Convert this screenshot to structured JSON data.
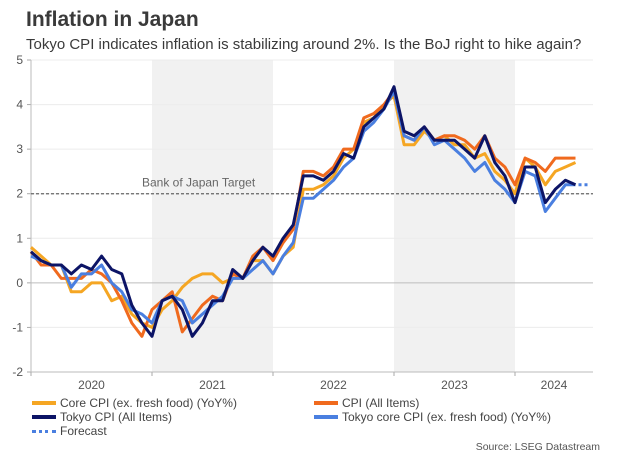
{
  "header": {
    "title": "Inflation in Japan",
    "subtitle": "Tokyo CPI indicates inflation is stabilizing around 2%. Is the BoJ right to hike again?"
  },
  "source": "Source: LSEG Datastream",
  "chart_data": {
    "type": "line",
    "title": "Inflation in Japan",
    "subtitle": "Tokyo CPI indicates inflation is stabilizing around 2%. Is the BoJ right to hike again?",
    "xlabel": "",
    "ylabel": "",
    "ylim": [
      -2,
      5
    ],
    "yticks": [
      "5",
      "4",
      "3",
      "2",
      "1",
      "0",
      "-1",
      "-2"
    ],
    "ytick_values": [
      5,
      4,
      3,
      2,
      1,
      0,
      -1,
      -2
    ],
    "x_start": "2020-01",
    "x_frequency": "monthly",
    "x_range_months": [
      0,
      56
    ],
    "year_labels": [
      "2020",
      "2021",
      "2022",
      "2023",
      "2024"
    ],
    "shaded_years": [
      "2021",
      "2023"
    ],
    "grid": true,
    "legend_position": "bottom",
    "reference_line": {
      "value": 2,
      "label": "Bank of Japan Target",
      "style": "dashed",
      "color": "#666666"
    },
    "series": [
      {
        "name": "Core CPI (ex. fresh food) (YoY%)",
        "color": "#f5a623",
        "values": [
          0.8,
          0.6,
          0.4,
          0.4,
          -0.2,
          -0.2,
          0.0,
          0.0,
          -0.4,
          -0.3,
          -0.7,
          -0.9,
          -1.0,
          -0.6,
          -0.4,
          -0.1,
          0.1,
          0.2,
          0.2,
          0.0,
          0.1,
          0.1,
          0.5,
          0.5,
          0.2,
          0.6,
          0.8,
          2.1,
          2.1,
          2.2,
          2.4,
          2.8,
          3.0,
          3.6,
          3.7,
          4.0,
          4.2,
          3.1,
          3.1,
          3.4,
          3.2,
          3.3,
          3.1,
          3.1,
          2.8,
          2.9,
          2.5,
          2.3,
          2.0,
          2.8,
          2.6,
          2.2,
          2.5,
          2.6,
          2.7
        ]
      },
      {
        "name": "CPI (All Items)",
        "color": "#f06a1e",
        "values": [
          0.7,
          0.4,
          0.4,
          0.1,
          0.1,
          0.1,
          0.3,
          0.2,
          0.0,
          -0.4,
          -0.9,
          -1.2,
          -0.6,
          -0.4,
          -0.2,
          -1.1,
          -0.8,
          -0.5,
          -0.3,
          -0.4,
          0.2,
          0.1,
          0.6,
          0.8,
          0.5,
          0.9,
          1.2,
          2.5,
          2.5,
          2.4,
          2.6,
          3.0,
          3.0,
          3.7,
          3.8,
          4.0,
          4.3,
          3.3,
          3.2,
          3.5,
          3.2,
          3.3,
          3.3,
          3.2,
          3.0,
          3.3,
          2.8,
          2.6,
          2.2,
          2.8,
          2.7,
          2.5,
          2.8,
          2.8,
          2.8
        ]
      },
      {
        "name": "Tokyo CPI (All Items)",
        "color": "#0c1466",
        "values": [
          0.7,
          0.5,
          0.4,
          0.4,
          0.2,
          0.4,
          0.3,
          0.6,
          0.3,
          0.2,
          -0.5,
          -0.9,
          -1.2,
          -0.4,
          -0.3,
          -0.6,
          -1.2,
          -0.9,
          -0.4,
          -0.4,
          0.3,
          0.1,
          0.5,
          0.8,
          0.6,
          1.0,
          1.3,
          2.4,
          2.4,
          2.3,
          2.5,
          2.9,
          2.8,
          3.5,
          3.7,
          3.9,
          4.4,
          3.4,
          3.3,
          3.5,
          3.2,
          3.2,
          3.2,
          3.0,
          2.8,
          3.3,
          2.7,
          2.4,
          1.8,
          2.6,
          2.6,
          1.8,
          2.1,
          2.3,
          2.2
        ]
      },
      {
        "name": "Tokyo core CPI (ex. fresh food) (YoY%)",
        "color": "#4a7fe0",
        "values": [
          0.6,
          0.5,
          0.4,
          0.4,
          -0.1,
          0.2,
          0.2,
          0.4,
          0.0,
          -0.2,
          -0.6,
          -0.7,
          -0.9,
          -0.4,
          -0.3,
          -0.4,
          -0.9,
          -0.7,
          -0.5,
          -0.3,
          0.1,
          0.1,
          0.3,
          0.5,
          0.2,
          0.6,
          0.9,
          1.9,
          1.9,
          2.1,
          2.3,
          2.6,
          2.8,
          3.4,
          3.6,
          3.9,
          4.3,
          3.3,
          3.2,
          3.5,
          3.1,
          3.2,
          3.0,
          2.8,
          2.5,
          2.7,
          2.3,
          2.1,
          1.8,
          2.5,
          2.4,
          1.6,
          1.9,
          2.2,
          2.2
        ]
      },
      {
        "name": "Forecast",
        "color": "#4a7fe0",
        "style": "dotted",
        "x_start_index": 54,
        "values": [
          2.2,
          2.2
        ]
      }
    ]
  },
  "legend": [
    {
      "label": "Core CPI (ex. fresh food) (YoY%)",
      "color": "#f5a623",
      "style": "solid"
    },
    {
      "label": "CPI (All Items)",
      "color": "#f06a1e",
      "style": "solid"
    },
    {
      "label": "Tokyo CPI (All Items)",
      "color": "#0c1466",
      "style": "solid"
    },
    {
      "label": "Tokyo core CPI (ex. fresh food) (YoY%)",
      "color": "#4a7fe0",
      "style": "solid"
    },
    {
      "label": "Forecast",
      "color": "#4a7fe0",
      "style": "dotted"
    }
  ]
}
